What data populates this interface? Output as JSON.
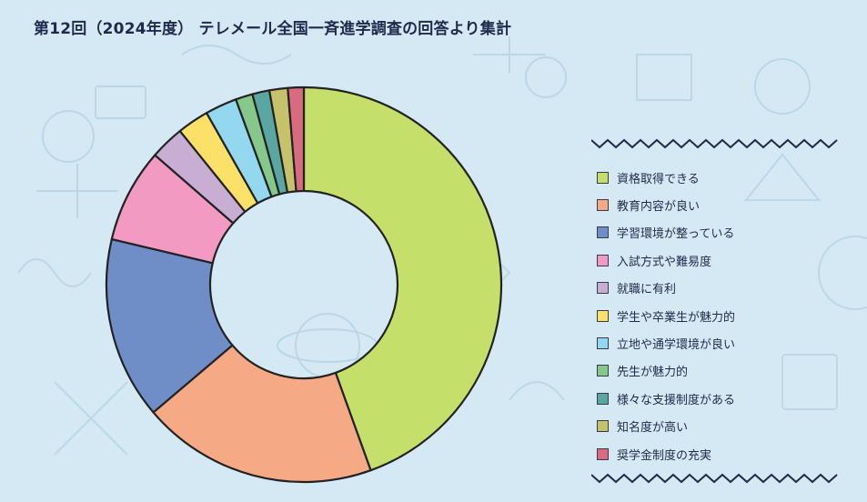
{
  "title": "第12回（2024年度） テレメール全国一斉進学調査の回答より集計",
  "colors": {
    "background": "#d4e9f4",
    "title_text": "#1f2a4a",
    "outline": "#222222",
    "wave": "#1f2a4a"
  },
  "chart_data": {
    "type": "pie",
    "variant": "donut",
    "start_angle_deg": 0,
    "direction": "clockwise",
    "legend_position": "right",
    "labels": [
      "資格取得できる",
      "教育内容が良い",
      "学習環境が整っている",
      "入試方式や難易度",
      "就職に有利",
      "学生や卒業生が魅力的",
      "立地や通学環境が良い",
      "先生が魅力的",
      "様々な支援制度がある",
      "知名度が高い",
      "奨学金制度の充実"
    ],
    "values": [
      44.5,
      19.3,
      14.9,
      7.7,
      2.8,
      2.6,
      2.6,
      1.4,
      1.4,
      1.5,
      1.3
    ],
    "colors": [
      "#c5e06a",
      "#f5a985",
      "#6f8ec8",
      "#f39ac2",
      "#c9aed4",
      "#fbe167",
      "#93d8ee",
      "#86c78c",
      "#5aa6a3",
      "#c5c26b",
      "#d96b80"
    ]
  }
}
